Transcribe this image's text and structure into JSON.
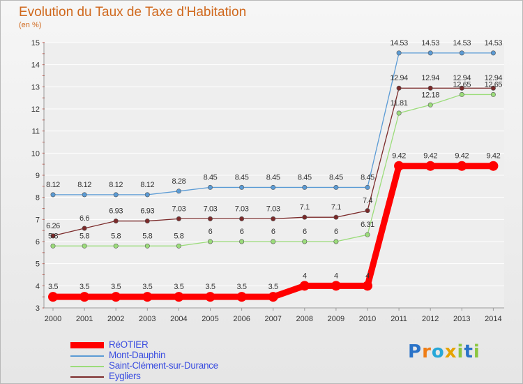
{
  "title": "Evolution du Taux de Taxe d'Habitation",
  "unit": "(en %)",
  "logo": {
    "text": "Proxiti"
  },
  "colors": {
    "background": "#eeeeee",
    "grid": "#ffffff",
    "axis": "#9a9a9a",
    "title": "#d0691e",
    "legend_text": "#3b4ee0",
    "label_text": "#333333"
  },
  "chart_data": {
    "type": "line",
    "title": "Evolution du Taux de Taxe d'Habitation",
    "ylabel": "(en %)",
    "xlabel": "",
    "x": [
      "2000",
      "2001",
      "2002",
      "2003",
      "2004",
      "2005",
      "2006",
      "2007",
      "2008",
      "2009",
      "2010",
      "2011",
      "2012",
      "2013",
      "2014"
    ],
    "ylim": [
      3,
      15
    ],
    "yticks": [
      3,
      4,
      5,
      6,
      7,
      8,
      9,
      10,
      11,
      12,
      13,
      14,
      15
    ],
    "grid": true,
    "legend_position": "bottom-left",
    "series": [
      {
        "name": "RéOTIER",
        "color": "#ff0000",
        "bold": true,
        "values": [
          3.5,
          3.5,
          3.5,
          3.5,
          3.5,
          3.5,
          3.5,
          3.5,
          4,
          4,
          4,
          9.42,
          9.42,
          9.42,
          9.42
        ],
        "labels": [
          "3.5",
          "3.5",
          "3.5",
          "3.5",
          "3.5",
          "3.5",
          "3.5",
          "3.5",
          "4",
          "4",
          "4",
          "9.42",
          "9.42",
          "9.42",
          "9.42"
        ]
      },
      {
        "name": "Mont-Dauphin",
        "color": "#5b9bd5",
        "values": [
          8.12,
          8.12,
          8.12,
          8.12,
          8.28,
          8.45,
          8.45,
          8.45,
          8.45,
          8.45,
          8.45,
          14.53,
          14.53,
          14.53,
          14.53
        ],
        "labels": [
          "8.12",
          "8.12",
          "8.12",
          "8.12",
          "8.28",
          "8.45",
          "8.45",
          "8.45",
          "8.45",
          "8.45",
          "8.45",
          "14.53",
          "14.53",
          "14.53",
          "14.53"
        ]
      },
      {
        "name": "Saint-Clément-sur-Durance",
        "color": "#9bdc7a",
        "values": [
          5.8,
          5.8,
          5.8,
          5.8,
          5.8,
          6,
          6,
          6,
          6,
          6,
          6.31,
          11.81,
          12.18,
          12.65,
          12.65
        ],
        "labels": [
          "5.8",
          "5.8",
          "5.8",
          "5.8",
          "5.8",
          "6",
          "6",
          "6",
          "6",
          "6",
          "6.31",
          "11.81",
          "12.18",
          "12.65",
          "12.65"
        ]
      },
      {
        "name": "Eygliers",
        "color": "#7b2a2a",
        "values": [
          6.26,
          6.6,
          6.93,
          6.93,
          7.03,
          7.03,
          7.03,
          7.03,
          7.1,
          7.1,
          7.4,
          12.94,
          12.94,
          12.94,
          12.94
        ],
        "labels": [
          "6.26",
          "6.6",
          "6.93",
          "6.93",
          "7.03",
          "7.03",
          "7.03",
          "7.03",
          "7.1",
          "7.1",
          "7.4",
          "12.94",
          "12.94",
          "12.94",
          "12.94"
        ]
      }
    ]
  }
}
